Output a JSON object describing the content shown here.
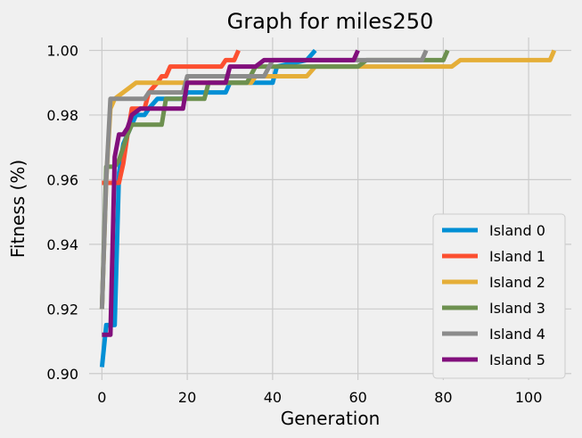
{
  "chart_data": {
    "type": "line",
    "title": "Graph for miles250",
    "xlabel": "Generation",
    "ylabel": "Fitness (%)",
    "xlim": [
      -3,
      110
    ],
    "ylim": [
      0.898,
      1.004
    ],
    "xticks": [
      0,
      20,
      40,
      60,
      80,
      100
    ],
    "xtick_labels": [
      "0",
      "20",
      "40",
      "60",
      "80",
      "100"
    ],
    "yticks": [
      0.9,
      0.92,
      0.94,
      0.96,
      0.98,
      1.0
    ],
    "ytick_labels": [
      "0.90",
      "0.92",
      "0.94",
      "0.96",
      "0.98",
      "1.00"
    ],
    "grid": true,
    "legend_position": "lower-right",
    "series": [
      {
        "name": "Island 0",
        "color": "#008fd5",
        "x": [
          0,
          1,
          2,
          3,
          4,
          5,
          6,
          7,
          8,
          10,
          11,
          13,
          19,
          20,
          29,
          30,
          40,
          41,
          48,
          50
        ],
        "y": [
          0.902,
          0.915,
          0.915,
          0.915,
          0.962,
          0.971,
          0.974,
          0.977,
          0.98,
          0.98,
          0.982,
          0.985,
          0.985,
          0.987,
          0.987,
          0.99,
          0.99,
          0.995,
          0.997,
          1.0
        ]
      },
      {
        "name": "Island 1",
        "color": "#fc4f30",
        "x": [
          0,
          1,
          2,
          3,
          4,
          5,
          6,
          7,
          10,
          11,
          13,
          14,
          15,
          16,
          17,
          28,
          29,
          30,
          31,
          32
        ],
        "y": [
          0.959,
          0.959,
          0.959,
          0.959,
          0.959,
          0.965,
          0.974,
          0.982,
          0.982,
          0.987,
          0.99,
          0.992,
          0.992,
          0.995,
          0.995,
          0.995,
          0.997,
          0.997,
          0.997,
          1.0
        ]
      },
      {
        "name": "Island 2",
        "color": "#e5ae38",
        "x": [
          0,
          1,
          2,
          3,
          8,
          35,
          36,
          37,
          48,
          50,
          82,
          84,
          104,
          105,
          106
        ],
        "y": [
          0.92,
          0.96,
          0.982,
          0.985,
          0.99,
          0.99,
          0.992,
          0.992,
          0.992,
          0.995,
          0.995,
          0.997,
          0.997,
          0.997,
          1.0
        ]
      },
      {
        "name": "Island 3",
        "color": "#6d904f",
        "x": [
          0,
          1,
          2,
          3,
          4,
          5,
          6,
          7,
          14,
          15,
          24,
          25,
          34,
          36,
          60,
          62,
          78,
          80,
          81
        ],
        "y": [
          0.92,
          0.964,
          0.964,
          0.964,
          0.966,
          0.97,
          0.974,
          0.977,
          0.977,
          0.985,
          0.985,
          0.99,
          0.99,
          0.995,
          0.995,
          0.997,
          0.997,
          0.997,
          1.0
        ]
      },
      {
        "name": "Island 4",
        "color": "#8b8b8b",
        "x": [
          0,
          1,
          2,
          9,
          10,
          11,
          19,
          20,
          38,
          40,
          75,
          76
        ],
        "y": [
          0.92,
          0.96,
          0.985,
          0.985,
          0.985,
          0.987,
          0.987,
          0.992,
          0.992,
          0.997,
          0.997,
          1.0
        ]
      },
      {
        "name": "Island 5",
        "color": "#810f7c",
        "x": [
          0,
          1,
          2,
          3,
          4,
          5,
          6,
          7,
          9,
          19,
          20,
          29,
          30,
          36,
          38,
          59,
          60
        ],
        "y": [
          0.912,
          0.912,
          0.912,
          0.967,
          0.974,
          0.974,
          0.976,
          0.98,
          0.982,
          0.982,
          0.99,
          0.99,
          0.995,
          0.995,
          0.997,
          0.997,
          1.0
        ]
      }
    ]
  }
}
